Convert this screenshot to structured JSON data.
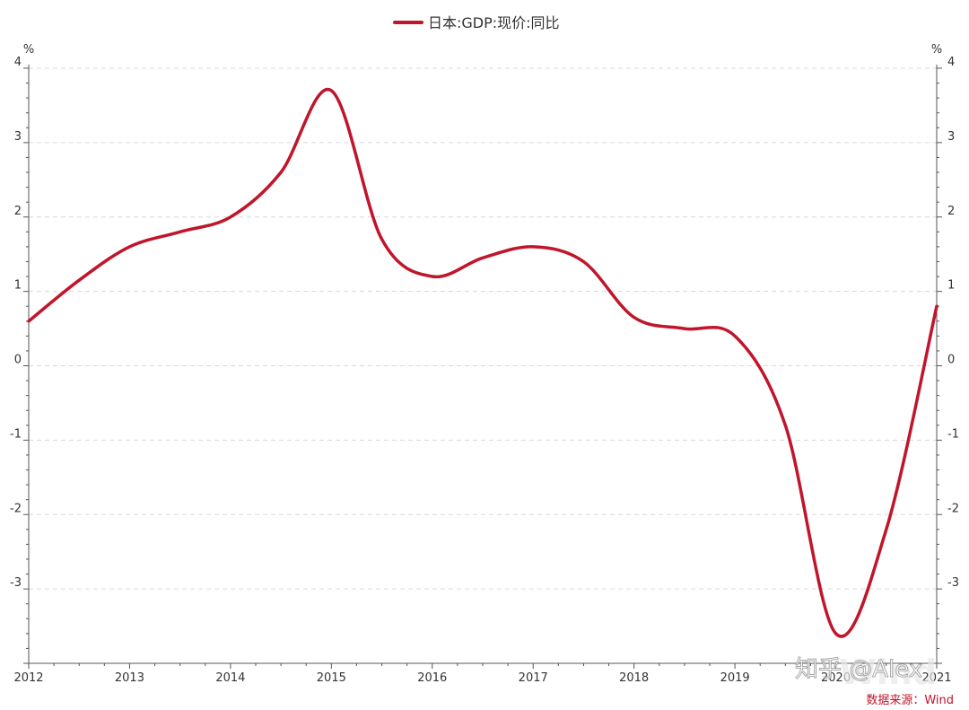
{
  "chart_data": {
    "type": "line",
    "title": "",
    "legend": {
      "entries": [
        "日本:GDP:现价:同比"
      ],
      "position": "top-center"
    },
    "ylabel_left": "%",
    "ylabel_right": "%",
    "ylim": [
      -4,
      4
    ],
    "yticks": [
      4,
      3,
      2,
      1,
      0,
      -1,
      -2,
      -3
    ],
    "xlim": [
      2012,
      2021
    ],
    "xticks": [
      "2012",
      "2013",
      "2014",
      "2015",
      "2016",
      "2017",
      "2018",
      "2019",
      "2020",
      "2021"
    ],
    "grid": true,
    "series": [
      {
        "name": "日本:GDP:现价:同比",
        "color": "#c0152a",
        "x": [
          2012,
          2012.5,
          2013,
          2013.5,
          2014,
          2014.5,
          2015,
          2015.5,
          2016,
          2016.5,
          2017,
          2017.5,
          2018,
          2018.5,
          2019,
          2019.5,
          2020,
          2020.5,
          2021
        ],
        "values": [
          0.6,
          1.15,
          1.6,
          1.8,
          2.0,
          2.6,
          3.7,
          1.7,
          1.2,
          1.45,
          1.6,
          1.4,
          0.65,
          0.5,
          0.4,
          -0.8,
          -3.6,
          -2.2,
          0.8
        ]
      }
    ]
  },
  "source_note": "数据来源：Wind",
  "watermark": {
    "zhihu": "知乎 @Alex",
    "wind": "Wind"
  },
  "colors": {
    "line": "#c0152a",
    "axis": "#555555",
    "grid": "#d9d9d9"
  }
}
